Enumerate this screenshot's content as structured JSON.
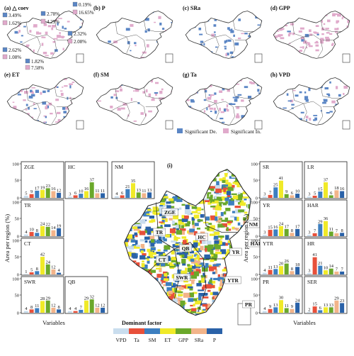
{
  "colors": {
    "vpd": "#c9ddee",
    "ta": "#e8503a",
    "sm": "#3d7fc0",
    "et": "#f0ea28",
    "gpp": "#6aa82a",
    "sra": "#f2b48a",
    "p": "#2a62a8",
    "decrease": "#5b86c5",
    "increase": "#e0aacb"
  },
  "maps": [
    {
      "label": "(a) △ coev",
      "annotations": [
        "3.49%",
        "1.62%",
        "2.78%",
        "4.29%",
        "0.19%",
        "16.65%",
        "2.32%",
        "2.08%",
        "2.62%",
        "1.08%",
        "1.82%",
        "7.58%"
      ]
    },
    {
      "label": "(b) P"
    },
    {
      "label": "(c) SRa"
    },
    {
      "label": "(d) GPP"
    },
    {
      "label": "(e) ET"
    },
    {
      "label": "(f) SM"
    },
    {
      "label": "(g) Ta"
    },
    {
      "label": "(h) VPD"
    }
  ],
  "significance_legend": {
    "decrease": "Significant De.",
    "increase": "Significant In."
  },
  "panel_i_label": "(i)",
  "axis": {
    "ylabel": "Area per region (%)",
    "xlabel": "Variables",
    "ticks": [
      "100",
      "50",
      "0"
    ]
  },
  "dominant_legend": {
    "title": "Dominant factor",
    "items": [
      "VPD",
      "Ta",
      "SM",
      "ET",
      "GPP",
      "SRa",
      "P"
    ]
  },
  "map_region_labels": [
    "ZGE",
    "TR",
    "CT",
    "QB",
    "HC",
    "SWR",
    "NM",
    "LR",
    "SR",
    "HAR",
    "YR",
    "HR",
    "YTR",
    "SER",
    "PR"
  ],
  "chart_data": {
    "type": "bar",
    "categories": [
      "VPD",
      "Ta",
      "SM",
      "ET",
      "GPP",
      "SRa",
      "P"
    ],
    "ylim": [
      0,
      100
    ],
    "ylabel": "Area per region (%)",
    "xlabel": "Variables",
    "regions": [
      {
        "name": "ZGE",
        "values": [
          5,
          9,
          17,
          19,
          23,
          16,
          12
        ]
      },
      {
        "name": "HC",
        "values": [
          3,
          6,
          10,
          16,
          37,
          11,
          11
        ]
      },
      {
        "name": "NM",
        "values": [
          4,
          6,
          21,
          35,
          13,
          11,
          13
        ]
      },
      {
        "name": "TR",
        "values": [
          4,
          10,
          8,
          24,
          22,
          14,
          19
        ]
      },
      {
        "name": "CT",
        "values": [
          1,
          5,
          8,
          42,
          24,
          12,
          4
        ]
      },
      {
        "name": "SWR",
        "values": [
          4,
          8,
          11,
          28,
          29,
          12,
          8
        ]
      },
      {
        "name": "QB",
        "values": [
          4,
          4,
          7,
          29,
          32,
          12,
          12
        ]
      },
      {
        "name": "SR",
        "values": [
          3,
          7,
          25,
          41,
          9,
          6,
          10
        ]
      },
      {
        "name": "LR",
        "values": [
          3,
          5,
          15,
          37,
          6,
          18,
          16
        ]
      },
      {
        "name": "YR",
        "values": [
          3,
          15,
          16,
          24,
          17,
          8,
          17
        ]
      },
      {
        "name": "HAR",
        "values": [
          3,
          7,
          29,
          36,
          11,
          7,
          8
        ]
      },
      {
        "name": "YTR",
        "values": [
          4,
          11,
          13,
          20,
          26,
          8,
          18
        ]
      },
      {
        "name": "HR",
        "values": [
          3,
          41,
          21,
          10,
          14,
          7,
          7
        ]
      },
      {
        "name": "PR",
        "values": [
          4,
          9,
          13,
          30,
          11,
          9,
          24
        ]
      },
      {
        "name": "SER",
        "values": [
          2,
          15,
          6,
          13,
          13,
          29,
          23
        ]
      }
    ]
  }
}
